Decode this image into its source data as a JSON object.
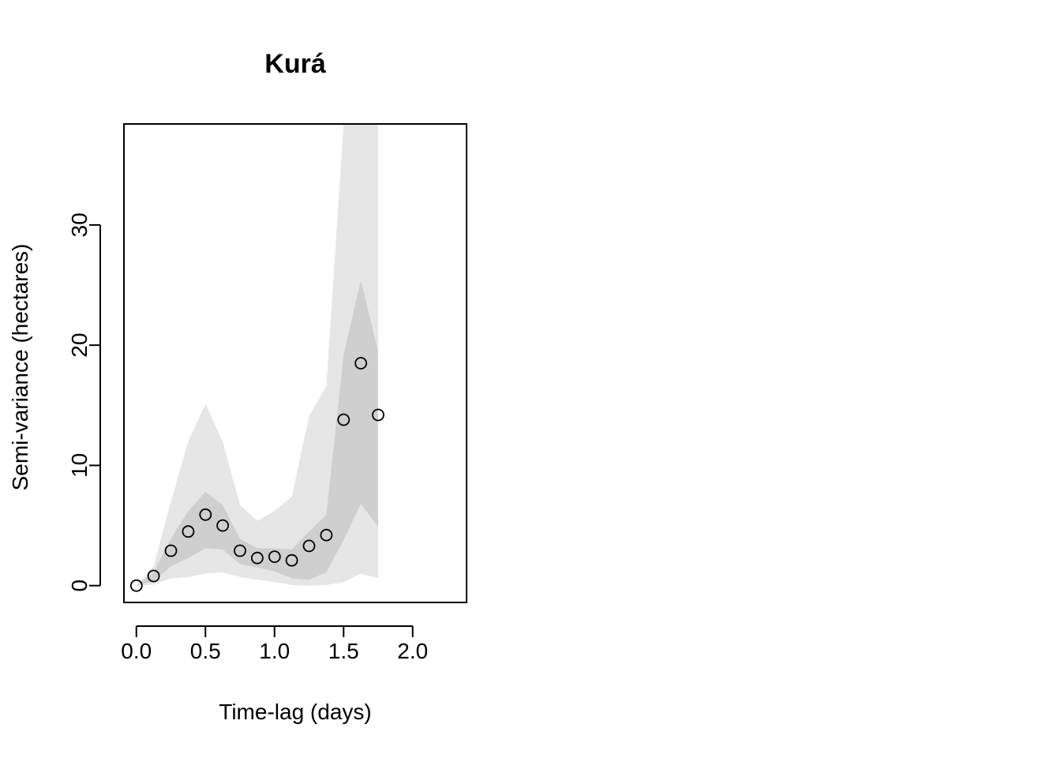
{
  "chart_data": {
    "type": "scatter",
    "title": "Kurá",
    "xlabel": "Time-lag (days)",
    "ylabel": "Semi-variance (hectares)",
    "xlim": [
      -0.09,
      2.39
    ],
    "ylim": [
      -1.4,
      38.4
    ],
    "x_ticks": [
      0,
      0.5,
      1,
      1.5,
      2
    ],
    "x_tick_labels": [
      "0.0",
      "0.5",
      "1.0",
      "1.5",
      "2.0"
    ],
    "y_ticks": [
      0,
      10,
      20,
      30
    ],
    "y_tick_labels": [
      "0",
      "10",
      "20",
      "30"
    ],
    "points": {
      "x": [
        0,
        0.125,
        0.25,
        0.375,
        0.5,
        0.625,
        0.75,
        0.875,
        1.0,
        1.125,
        1.25,
        1.375,
        1.5,
        1.625,
        1.75
      ],
      "y": [
        0,
        0.8,
        2.9,
        4.5,
        5.9,
        5.0,
        2.9,
        2.3,
        2.4,
        2.1,
        3.3,
        4.2,
        13.8,
        18.5,
        14.2
      ]
    },
    "bands": [
      {
        "level": "outer",
        "color": "#e6e6e6",
        "x": [
          0,
          0.125,
          0.25,
          0.375,
          0.5,
          0.625,
          0.75,
          0.875,
          1.0,
          1.125,
          1.25,
          1.375,
          1.5,
          1.625,
          1.75
        ],
        "lower": [
          0,
          0.1,
          0.6,
          0.7,
          1.0,
          1.1,
          0.7,
          0.5,
          0.3,
          0.05,
          0.0,
          0.05,
          0.3,
          1.0,
          0.6
        ],
        "upper": [
          0,
          1.6,
          7.0,
          12.0,
          15.1,
          12.0,
          6.7,
          5.4,
          6.2,
          7.4,
          14.1,
          16.6,
          38.4,
          38.4,
          38.4
        ]
      },
      {
        "level": "inner",
        "color": "#cfcfcf",
        "x": [
          0,
          0.125,
          0.25,
          0.375,
          0.5,
          0.625,
          0.75,
          0.875,
          1.0,
          1.125,
          1.25,
          1.375,
          1.5,
          1.625,
          1.75
        ],
        "lower": [
          0,
          0.4,
          1.6,
          2.3,
          3.1,
          3.0,
          1.8,
          1.5,
          1.2,
          0.6,
          0.5,
          1.1,
          3.8,
          6.8,
          4.9
        ],
        "upper": [
          0,
          1.1,
          3.9,
          6.2,
          7.8,
          6.7,
          3.9,
          3.1,
          3.1,
          3.0,
          4.5,
          5.9,
          19.2,
          25.4,
          19.5
        ]
      }
    ],
    "grid": false,
    "legend": "none",
    "point_style": "open-circle"
  }
}
